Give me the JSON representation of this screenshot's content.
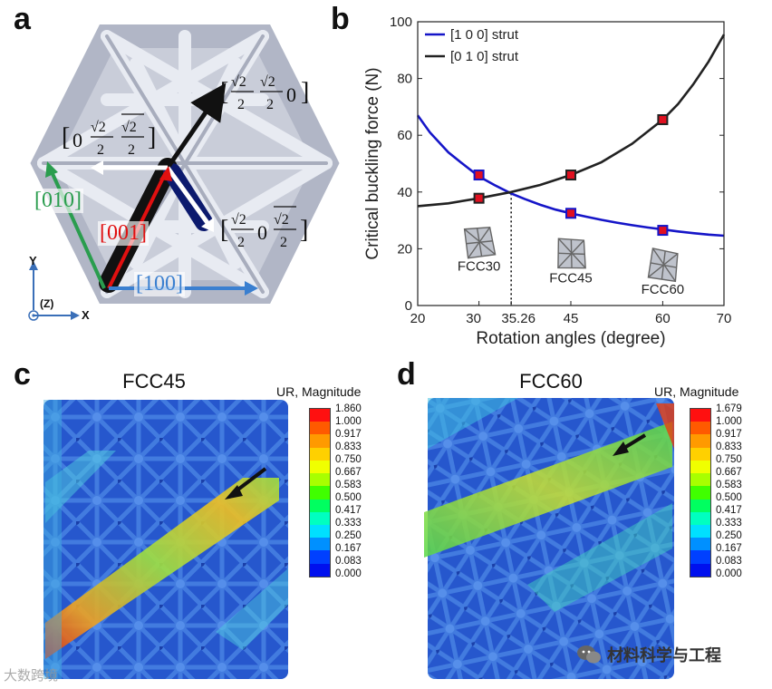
{
  "panels": {
    "a": {
      "label": "a",
      "directions": {
        "d010": "[010]",
        "d001": "[001]",
        "d100": "[100]"
      },
      "axes": {
        "y": "Y",
        "z": "(Z)",
        "x": "X"
      },
      "colors": {
        "d010": "#2a9d4e",
        "d001": "#e01010",
        "d100": "#3a7fd0",
        "strut_black": "#111111",
        "strut_yellow": "#d8d000"
      }
    },
    "b": {
      "label": "b"
    },
    "c": {
      "label": "c",
      "title": "FCC45",
      "legend_title": "UR, Magnitude",
      "ticks": [
        "1.860",
        "1.000",
        "0.917",
        "0.833",
        "0.750",
        "0.667",
        "0.583",
        "0.500",
        "0.417",
        "0.333",
        "0.250",
        "0.167",
        "0.083",
        "0.000"
      ]
    },
    "d": {
      "label": "d",
      "title": "FCC60",
      "legend_title": "UR, Magnitude",
      "ticks": [
        "1.679",
        "1.000",
        "0.917",
        "0.833",
        "0.750",
        "0.667",
        "0.583",
        "0.500",
        "0.417",
        "0.333",
        "0.250",
        "0.167",
        "0.083",
        "0.000"
      ]
    }
  },
  "chart_data": {
    "type": "line",
    "xlabel": "Rotation angles (degree)",
    "ylabel": "Critical buckling force (N)",
    "xlim": [
      20,
      70
    ],
    "ylim": [
      0,
      100
    ],
    "xticks": [
      20,
      30,
      35.26,
      45,
      60,
      70
    ],
    "xtick_labels": [
      "20",
      "30",
      "35.26",
      "45",
      "60",
      "70"
    ],
    "yticks": [
      0,
      20,
      40,
      60,
      80,
      100
    ],
    "ytick_labels": [
      "0",
      "20",
      "40",
      "60",
      "80",
      "100"
    ],
    "intersection_x": 35.26,
    "legend_position": "top-left",
    "series": [
      {
        "name": "[1 0 0] strut",
        "color": "#1515c8",
        "curve_x": [
          20,
          22,
          25,
          27,
          30,
          32.5,
          35.26,
          37.5,
          40,
          42.5,
          45,
          47.5,
          50,
          52.5,
          55,
          57.5,
          60,
          62.5,
          65,
          67.5,
          70
        ],
        "curve_y": [
          67,
          61,
          54,
          50.5,
          45.5,
          42.5,
          39.5,
          37.5,
          35.5,
          33.8,
          32.5,
          31.3,
          30.2,
          29.2,
          28.3,
          27.5,
          26.8,
          26.1,
          25.5,
          25.0,
          24.6
        ],
        "points_x": [
          30,
          45,
          60
        ],
        "points_y": [
          46,
          32.5,
          26.5
        ]
      },
      {
        "name": "[0 1 0] strut",
        "color": "#222222",
        "curve_x": [
          20,
          25,
          30,
          35.26,
          40,
          45,
          50,
          55,
          60,
          62.5,
          65,
          67.5,
          70
        ],
        "curve_y": [
          35,
          36,
          37.8,
          40,
          42.5,
          46,
          50.5,
          57,
          65.5,
          71,
          78,
          86,
          95.5
        ],
        "points_x": [
          30,
          45,
          60
        ],
        "points_y": [
          37.8,
          46,
          65.5
        ]
      }
    ],
    "annotations": [
      {
        "text": "FCC30",
        "x": 30,
        "y": 13.5
      },
      {
        "text": "FCC45",
        "x": 45,
        "y": 9.5
      },
      {
        "text": "FCC60",
        "x": 60,
        "y": 5.5
      }
    ]
  },
  "watermark": {
    "left": "大数跨境",
    "right": "材料科学与工程"
  }
}
